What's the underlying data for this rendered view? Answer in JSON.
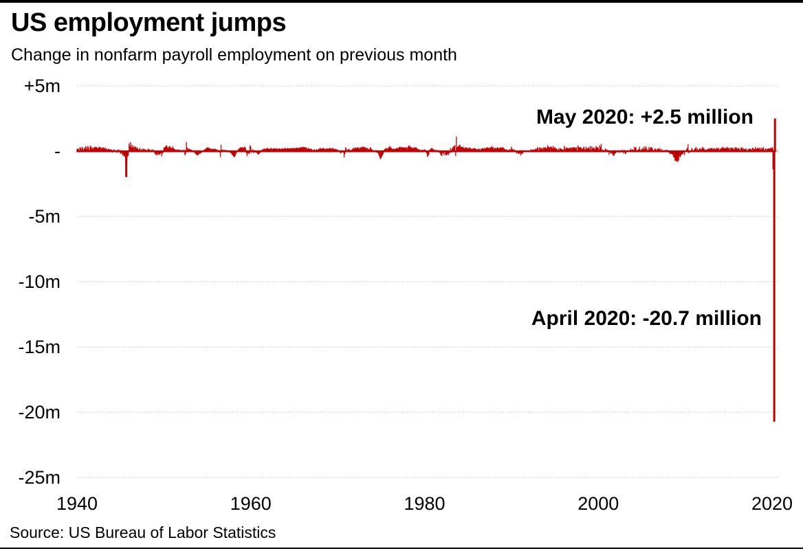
{
  "header": {
    "title": "US employment jumps",
    "subtitle": "Change in nonfarm payroll employment on previous month"
  },
  "source": "Source: US Bureau of Labor Statistics",
  "colors": {
    "bar": "#c00000",
    "gridline": "#cfcfcf",
    "zero_line": "#c8c8c8",
    "frame": "#000000",
    "text": "#000000"
  },
  "chart_data": {
    "type": "bar",
    "title": "US employment jumps",
    "subtitle": "Change in nonfarm payroll employment on previous month",
    "unit": "thousands of jobs (month-over-month change); axis labels in millions",
    "x_axis": {
      "from": "1940-01",
      "to": "2020-05",
      "resolution": "monthly"
    },
    "x_tick_years": [
      1940,
      1960,
      1980,
      2000,
      2020
    ],
    "x_tick_labels": [
      "1940",
      "1960",
      "1980",
      "2000",
      "2020"
    ],
    "y_ticks": [
      {
        "label": "+5m",
        "value": 5000
      },
      {
        "label": "-",
        "value": 0
      },
      {
        "label": "-5m",
        "value": -5000
      },
      {
        "label": "-10m",
        "value": -10000
      },
      {
        "label": "-15m",
        "value": -15000
      },
      {
        "label": "-20m",
        "value": -20000
      },
      {
        "label": "-25m",
        "value": -25000
      }
    ],
    "ylim_thousands": [
      -25000,
      5000
    ],
    "grid": "dotted horizontal gridlines, solid grey zero line",
    "legend": "none",
    "highlights": [
      {
        "label": "May 2020: +2.5 million",
        "month": "2020-05",
        "value_thousands": 2500
      },
      {
        "label": "April 2020: -20.7 million",
        "month": "2020-04",
        "value_thousands": -20700
      }
    ],
    "values_note": "estimated monthly values in thousands, Jan 1940 through May 2020",
    "values_thousands": [
      150,
      220,
      180,
      -60,
      300,
      250,
      120,
      340,
      200,
      90,
      280,
      160,
      380,
      320,
      150,
      400,
      280,
      90,
      350,
      430,
      210,
      300,
      180,
      260,
      320,
      280,
      350,
      300,
      250,
      200,
      300,
      350,
      250,
      300,
      200,
      250,
      300,
      250,
      200,
      280,
      150,
      200,
      100,
      150,
      200,
      100,
      150,
      100,
      120,
      -80,
      60,
      150,
      -40,
      90,
      30,
      -100,
      80,
      140,
      -60,
      100,
      -150,
      -200,
      -100,
      -300,
      -250,
      -400,
      -350,
      -600,
      -1960,
      -800,
      -400,
      -300,
      600,
      400,
      700,
      300,
      500,
      350,
      250,
      400,
      300,
      350,
      200,
      300,
      200,
      100,
      150,
      250,
      80,
      120,
      180,
      90,
      200,
      150,
      100,
      120,
      100,
      50,
      150,
      200,
      120,
      80,
      -50,
      100,
      150,
      60,
      90,
      -100,
      -200,
      -250,
      -300,
      -150,
      -280,
      -200,
      -250,
      -180,
      -120,
      -380,
      -150,
      -100,
      250,
      300,
      350,
      400,
      450,
      300,
      250,
      350,
      400,
      300,
      250,
      200,
      380,
      250,
      200,
      150,
      100,
      120,
      80,
      150,
      100,
      50,
      120,
      90,
      50,
      80,
      -60,
      100,
      120,
      -300,
      -200,
      700,
      300,
      150,
      200,
      180,
      150,
      120,
      100,
      80,
      50,
      -30,
      -80,
      -120,
      -200,
      -250,
      -300,
      -280,
      -250,
      -150,
      -180,
      -120,
      -80,
      -50,
      30,
      80,
      120,
      150,
      200,
      250,
      300,
      250,
      280,
      220,
      180,
      200,
      150,
      180,
      160,
      140,
      200,
      180,
      120,
      150,
      80,
      100,
      60,
      -80,
      -430,
      500,
      90,
      120,
      80,
      100,
      80,
      60,
      100,
      50,
      -40,
      30,
      -60,
      -80,
      -100,
      -150,
      -250,
      -300,
      -350,
      -450,
      -400,
      -300,
      -150,
      -50,
      80,
      150,
      200,
      250,
      300,
      280,
      280,
      300,
      250,
      300,
      350,
      200,
      -150,
      -350,
      -100,
      -150,
      -200,
      450,
      345,
      -100,
      80,
      150,
      -120,
      60,
      -80,
      -50,
      -100,
      -150,
      -200,
      -250,
      -150,
      -100,
      -50,
      80,
      150,
      120,
      180,
      200,
      150,
      180,
      220,
      250,
      200,
      180,
      150,
      220,
      250,
      180,
      160,
      200,
      240,
      180,
      200,
      220,
      180,
      200,
      160,
      220,
      200,
      180,
      150,
      200,
      220,
      180,
      200,
      250,
      220,
      180,
      200,
      250,
      200,
      220,
      180,
      250,
      200,
      220,
      250,
      200,
      250,
      220,
      200,
      280,
      250,
      220,
      250,
      280,
      250,
      300,
      280,
      300,
      350,
      300,
      280,
      320,
      250,
      300,
      150,
      200,
      250,
      180,
      150,
      200,
      150,
      100,
      80,
      120,
      150,
      -50,
      100,
      150,
      100,
      120,
      180,
      200,
      250,
      200,
      180,
      220,
      250,
      200,
      180,
      160,
      200,
      180,
      220,
      150,
      220,
      250,
      200,
      230,
      180,
      250,
      200,
      180,
      150,
      180,
      120,
      150,
      100,
      50,
      -30,
      80,
      -150,
      -100,
      -80,
      -50,
      -100,
      -450,
      -200,
      300,
      200,
      -50,
      100,
      150,
      180,
      -80,
      50,
      100,
      150,
      200,
      250,
      180,
      280,
      250,
      220,
      300,
      250,
      280,
      180,
      300,
      250,
      300,
      350,
      280,
      350,
      300,
      250,
      300,
      200,
      250,
      150,
      180,
      120,
      300,
      250,
      150,
      100,
      80,
      50,
      -30,
      80,
      50,
      -80,
      -100,
      -150,
      -300,
      -450,
      -600,
      -500,
      -400,
      -300,
      -200,
      100,
      150,
      200,
      250,
      180,
      200,
      250,
      300,
      400,
      300,
      250,
      200,
      150,
      180,
      200,
      150,
      180,
      220,
      250,
      200,
      250,
      300,
      350,
      300,
      280,
      320,
      300,
      250,
      300,
      250,
      300,
      280,
      200,
      350,
      400,
      450,
      300,
      350,
      250,
      300,
      200,
      250,
      300,
      250,
      300,
      250,
      200,
      150,
      100,
      150,
      50,
      100,
      80,
      120,
      60,
      100,
      150,
      80,
      50,
      -150,
      -430,
      -320,
      -260,
      100,
      150,
      200,
      250,
      200,
      150,
      100,
      120,
      80,
      50,
      100,
      50,
      -40,
      -80,
      -100,
      -200,
      -300,
      -350,
      -100,
      -150,
      -280,
      -50,
      -250,
      -300,
      -250,
      -200,
      -280,
      -150,
      -100,
      250,
      -80,
      180,
      300,
      350,
      400,
      450,
      -350,
      1110,
      300,
      350,
      400,
      450,
      500,
      300,
      350,
      300,
      350,
      250,
      200,
      300,
      250,
      300,
      200,
      250,
      200,
      300,
      250,
      200,
      150,
      200,
      180,
      200,
      250,
      200,
      180,
      150,
      100,
      150,
      200,
      150,
      -50,
      200,
      150,
      250,
      200,
      180,
      250,
      200,
      250,
      250,
      300,
      250,
      200,
      300,
      250,
      300,
      400,
      250,
      300,
      150,
      250,
      250,
      200,
      250,
      300,
      250,
      200,
      250,
      300,
      250,
      300,
      300,
      250,
      200,
      150,
      100,
      150,
      80,
      100,
      50,
      100,
      150,
      100,
      350,
      200,
      150,
      50,
      150,
      50,
      -50,
      -150,
      -80,
      -150,
      -200,
      -150,
      -120,
      -300,
      -150,
      -200,
      -120,
      80,
      -50,
      30,
      50,
      -30,
      -50,
      50,
      50,
      -50,
      50,
      150,
      120,
      80,
      100,
      150,
      100,
      150,
      200,
      150,
      300,
      250,
      -50,
      300,
      250,
      200,
      250,
      150,
      250,
      300,
      250,
      300,
      250,
      200,
      450,
      350,
      300,
      300,
      350,
      300,
      350,
      200,
      400,
      250,
      300,
      200,
      220,
      150,
      -50,
      200,
      100,
      250,
      200,
      150,
      150,
      150,
      -50,
      400,
      250,
      150,
      300,
      250,
      200,
      250,
      200,
      250,
      300,
      200,
      250,
      300,
      300,
      300,
      250,
      250,
      300,
      50,
      450,
      300,
      300,
      300,
      300,
      200,
      150,
      250,
      350,
      200,
      100,
      350,
      200,
      200,
      250,
      300,
      150,
      400,
      100,
      350,
      200,
      250,
      300,
      150,
      200,
      400,
      300,
      300,
      250,
      100,
      450,
      300,
      550,
      -50,
      150,
      -50,
      100,
      -10,
      200,
      150,
      -50,
      100,
      -30,
      -250,
      -30,
      -130,
      -130,
      -160,
      -250,
      -330,
      -300,
      -150,
      -150,
      -50,
      -30,
      -90,
      -10,
      50,
      -100,
      -20,
      -60,
      120,
      10,
      -160,
      100,
      -160,
      -210,
      -50,
      -10,
      -20,
      30,
      -40,
      100,
      200,
      20,
      120,
      150,
      50,
      340,
      250,
      310,
      80,
      50,
      120,
      160,
      350,
      60,
      130,
      130,
      240,
      140,
      360,
      170,
      250,
      370,
      190,
      80,
      80,
      330,
      160,
      280,
      310,
      280,
      180,
      30,
      80,
      200,
      180,
      150,
      30,
      200,
      170,
      240,
      90,
      190,
      80,
      140,
      70,
      -30,
      -20,
      90,
      80,
      110,
      90,
      10,
      -80,
      -80,
      -210,
      -190,
      -170,
      -210,
      -280,
      -430,
      -480,
      -730,
      -700,
      -790,
      -700,
      -800,
      -690,
      -360,
      -470,
      -330,
      -230,
      -200,
      -200,
      -10,
      -280,
      20,
      -60,
      160,
      250,
      520,
      -130,
      -70,
      -40,
      -50,
      240,
      140,
      70,
      40,
      190,
      210,
      320,
      100,
      220,
      70,
      110,
      230,
      180,
      140,
      200,
      340,
      230,
      240,
      100,
      110,
      90,
      160,
      150,
      160,
      230,
      150,
      240,
      200,
      270,
      140,
      200,
      220,
      180,
      140,
      270,
      170,
      220,
      270,
      80,
      170,
      190,
      230,
      330,
      220,
      290,
      240,
      210,
      250,
      220,
      330,
      260,
      200,
      270,
      90,
      250,
      270,
      230,
      250,
      150,
      140,
      300,
      280,
      270,
      130,
      240,
      220,
      160,
      40,
      270,
      290,
      180,
      250,
      130,
      160,
      160,
      220,
      60,
      50,
      170,
      150,
      210,
      140,
      190,
      10,
      270,
      220,
      170,
      170,
      330,
      180,
      180,
      270,
      210,
      180,
      280,
      110,
      270,
      170,
      230,
      310,
      1,
      150,
      210,
      60,
      180,
      180,
      210,
      210,
      190,
      260,
      180,
      310,
      250,
      -1370,
      -20700,
      2500
    ]
  }
}
